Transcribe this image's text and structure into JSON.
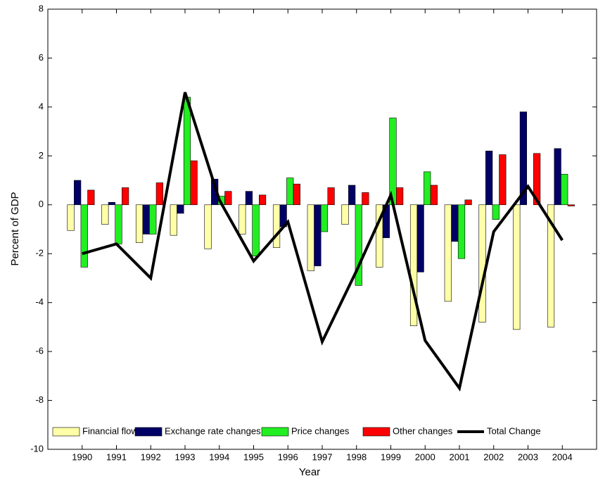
{
  "chart_data": {
    "type": "bar",
    "x_label": "Year",
    "y_label": "Percent of GDP",
    "categories": [
      "1990",
      "1991",
      "1992",
      "1993",
      "1994",
      "1995",
      "1996",
      "1997",
      "1998",
      "1999",
      "2000",
      "2001",
      "2002",
      "2003",
      "2004"
    ],
    "series": [
      {
        "name": "Financial flows",
        "color": "#ffffa8",
        "values": [
          -1.05,
          -0.8,
          -1.55,
          -1.25,
          -1.8,
          -1.2,
          -1.75,
          -2.7,
          -0.8,
          -2.55,
          -4.95,
          -3.95,
          -4.8,
          -5.1,
          -5.0
        ]
      },
      {
        "name": "Exchange rate changes",
        "color": "#000066",
        "values": [
          1.0,
          0.1,
          -1.2,
          -0.35,
          1.05,
          0.55,
          -0.9,
          -2.5,
          0.8,
          -1.35,
          -2.75,
          -1.5,
          2.2,
          3.8,
          2.3
        ]
      },
      {
        "name": "Price changes",
        "color": "#22ee22",
        "values": [
          -2.55,
          -1.6,
          -1.2,
          4.4,
          0.35,
          -2.1,
          1.1,
          -1.1,
          -3.3,
          3.55,
          1.35,
          -2.2,
          -0.6,
          0,
          1.25
        ]
      },
      {
        "name": "Other changes",
        "color": "#ff0000",
        "values": [
          0.6,
          0.7,
          0.9,
          1.8,
          0.55,
          0.4,
          0.85,
          0.7,
          0.5,
          0.7,
          0.8,
          0.2,
          2.05,
          2.1,
          -0.05
        ]
      },
      {
        "name": "Total Change",
        "color": "#000000",
        "type": "line",
        "values": [
          -2.0,
          -1.6,
          -3.0,
          4.6,
          0.2,
          -2.3,
          -0.7,
          -5.6,
          -2.7,
          0.4,
          -5.55,
          -7.5,
          -1.1,
          0.75,
          -1.45
        ]
      }
    ],
    "ylim": [
      -10,
      8
    ],
    "yticks": [
      -10,
      -8,
      -6,
      -4,
      -2,
      0,
      2,
      4,
      6,
      8
    ],
    "legend": "bottom"
  }
}
